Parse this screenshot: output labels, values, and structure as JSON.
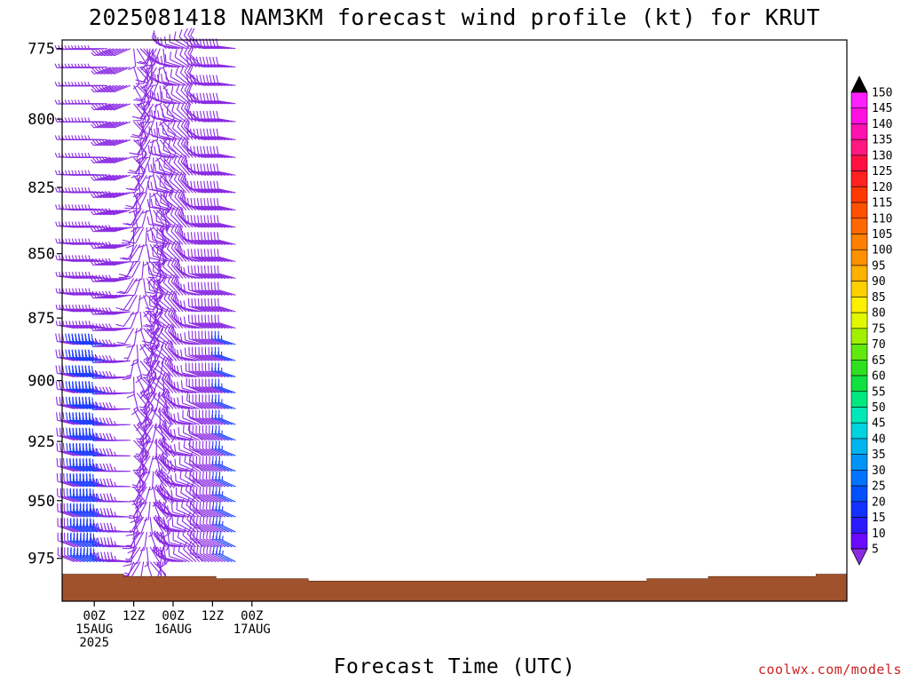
{
  "chart_data": {
    "type": "wind-barb-time-height",
    "title": "2025081418 NAM3KM forecast wind profile (kt) for KRUT",
    "xlabel": "Forecast Time (UTC)",
    "ylabel": "",
    "y_ticks": [
      "775",
      "800",
      "825",
      "850",
      "875",
      "900",
      "925",
      "950",
      "975"
    ],
    "y_tick_values": [
      775,
      800,
      825,
      850,
      875,
      900,
      925,
      950,
      975
    ],
    "ylim": [
      772,
      994
    ],
    "y_scale": "log-pressure",
    "x_range_hours": [
      -6,
      43
    ],
    "x_step_hours": 1,
    "x_ticks": [
      {
        "hour": 0,
        "lines": [
          "00Z",
          "15AUG",
          "2025"
        ]
      },
      {
        "hour": 12,
        "lines": [
          "12Z"
        ]
      },
      {
        "hour": 24,
        "lines": [
          "00Z",
          "16AUG"
        ]
      },
      {
        "hour": 36,
        "lines": [
          "12Z"
        ]
      },
      {
        "hour": 48,
        "lines": [
          "00Z",
          "17AUG"
        ]
      }
    ],
    "level_step_hpa": 6.5,
    "surface_pressure": [
      982,
      982,
      982,
      982,
      983,
      983,
      983,
      983,
      983,
      983,
      984,
      984,
      984,
      984,
      984,
      984,
      985,
      985,
      985,
      985,
      985,
      985,
      985,
      985,
      985,
      985,
      985,
      985,
      985,
      985,
      985,
      985,
      985,
      985,
      985,
      985,
      985,
      985,
      984,
      984,
      984,
      984,
      983,
      983,
      983,
      983,
      983,
      983,
      983,
      982,
      982
    ],
    "wind_speed_knots": [
      {
        "hours": [
          -6,
          -3
        ],
        "low_level": 10,
        "upper_level": 5
      },
      {
        "hours": [
          -3,
          6
        ],
        "low_level": 25,
        "upper_level": 5
      },
      {
        "hours": [
          6,
          14
        ],
        "low_level": 15,
        "upper_level": 10
      },
      {
        "hours": [
          14,
          24
        ],
        "low_level": 5,
        "upper_level": 10
      },
      {
        "hours": [
          24,
          40
        ],
        "low_level": 10,
        "upper_level": 10
      },
      {
        "hours": [
          40,
          50
        ],
        "low_level": 15,
        "upper_level": 10
      }
    ],
    "colorbar": {
      "labels": [
        "5",
        "10",
        "15",
        "20",
        "25",
        "30",
        "35",
        "40",
        "45",
        "50",
        "55",
        "60",
        "65",
        "70",
        "75",
        "80",
        "85",
        "90",
        "95",
        "100",
        "105",
        "110",
        "115",
        "120",
        "125",
        "130",
        "135",
        "140",
        "145",
        "150"
      ],
      "colors": [
        "#9b30ff",
        "#6a0aff",
        "#2c1bff",
        "#1230ff",
        "#0050ff",
        "#0074ff",
        "#0094f8",
        "#00b4f0",
        "#00d4e0",
        "#00e8b8",
        "#00e880",
        "#10e040",
        "#30e020",
        "#60e810",
        "#a0f000",
        "#e0f800",
        "#fff000",
        "#ffd000",
        "#ffb000",
        "#ff9000",
        "#ff8000",
        "#ff6800",
        "#ff5000",
        "#ff3800",
        "#ff2020",
        "#ff1040",
        "#ff1880",
        "#ff10b0",
        "#ff10e0",
        "#ff20ff"
      ],
      "overflow_color": "#000000",
      "underflow_color": "#8a2be2"
    },
    "terrain_color": "#a0522d",
    "barb_color_primary": "#8a2be2",
    "barb_color_secondary": "#1e3cff",
    "credit": "coolwx.com/models"
  }
}
